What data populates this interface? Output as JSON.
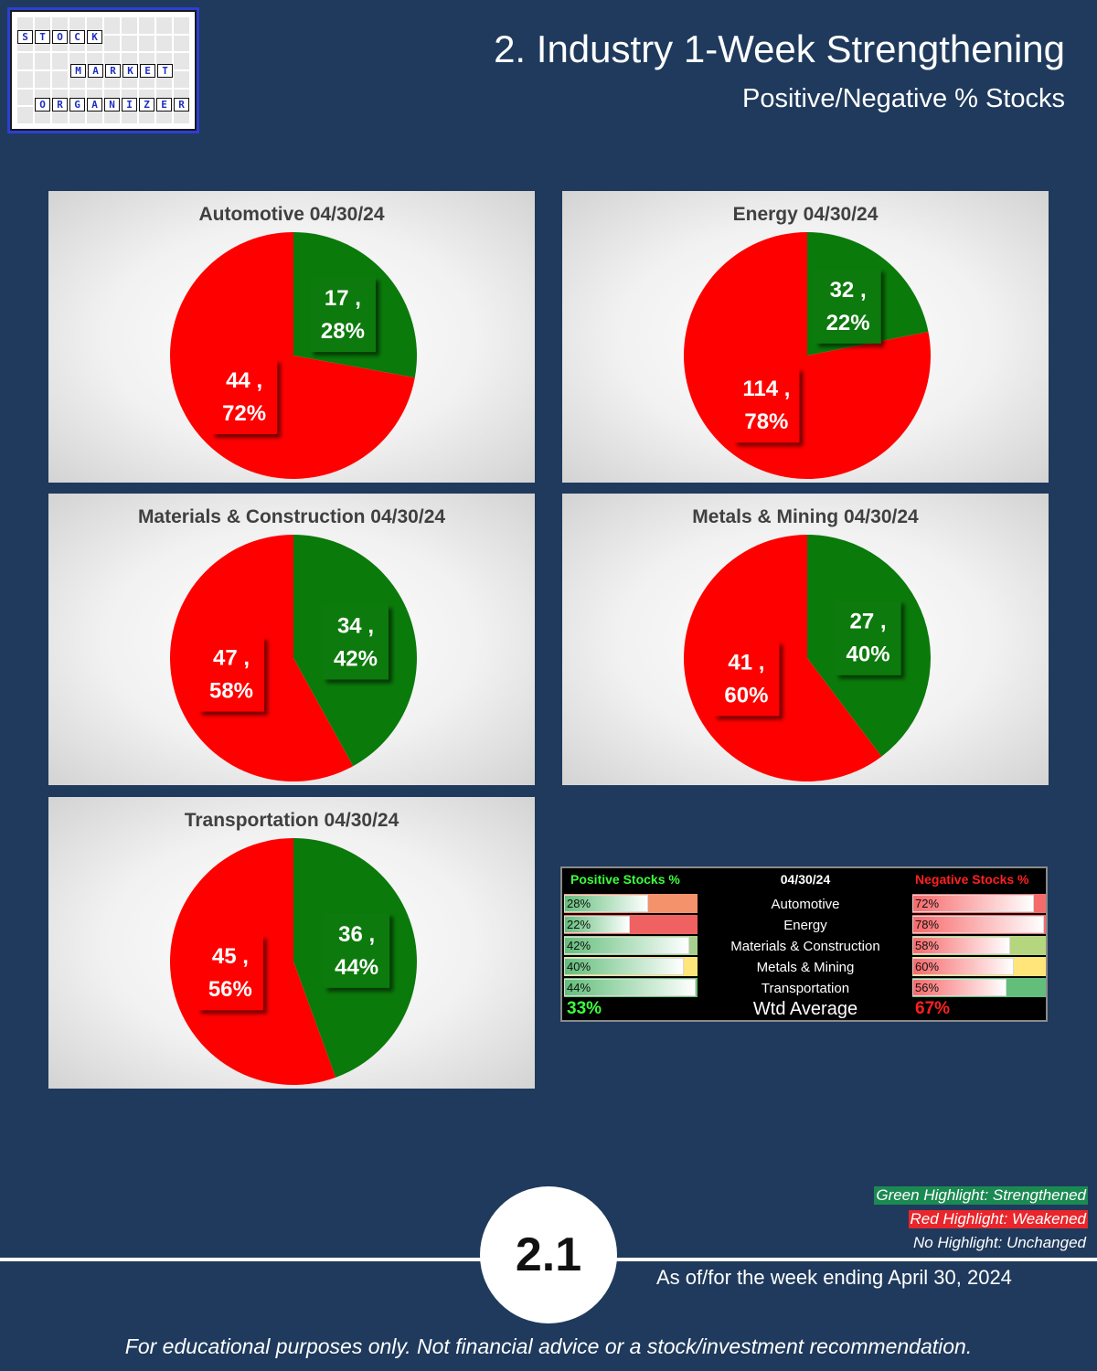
{
  "header": {
    "title": "2. Industry 1-Week Strengthening",
    "subtitle": "Positive/Negative % Stocks"
  },
  "logo": {
    "words": [
      [
        "S",
        "T",
        "O",
        "C",
        "K"
      ],
      [
        "M",
        "A",
        "R",
        "K",
        "E",
        "T"
      ],
      [
        "O",
        "R",
        "G",
        "A",
        "N",
        "I",
        "Z",
        "E",
        "R"
      ]
    ]
  },
  "colors": {
    "positive": "#0a7a0a",
    "negative": "#ff0000",
    "background": "#1f3a5c"
  },
  "chart_data": [
    {
      "type": "pie",
      "title": "Automotive 04/30/24",
      "labels": [
        "Positive",
        "Negative"
      ],
      "values": [
        17,
        44
      ],
      "percent_labels": [
        "17 ,",
        "28%",
        "44 ,",
        "72%"
      ]
    },
    {
      "type": "pie",
      "title": "Energy 04/30/24",
      "labels": [
        "Positive",
        "Negative"
      ],
      "values": [
        32,
        114
      ],
      "percent_labels": [
        "32 ,",
        "22%",
        "114 ,",
        "78%"
      ]
    },
    {
      "type": "pie",
      "title": "Materials & Construction 04/30/24",
      "labels": [
        "Positive",
        "Negative"
      ],
      "values": [
        34,
        47
      ],
      "percent_labels": [
        "34 ,",
        "42%",
        "47 ,",
        "58%"
      ]
    },
    {
      "type": "pie",
      "title": "Metals & Mining 04/30/24",
      "labels": [
        "Positive",
        "Negative"
      ],
      "values": [
        27,
        41
      ],
      "percent_labels": [
        "27 ,",
        "40%",
        "41 ,",
        "60%"
      ]
    },
    {
      "type": "pie",
      "title": "Transportation 04/30/24",
      "labels": [
        "Positive",
        "Negative"
      ],
      "values": [
        36,
        45
      ],
      "percent_labels": [
        "36 ,",
        "44%",
        "45 ,",
        "56%"
      ]
    },
    {
      "type": "table",
      "headers": {
        "positive": "Positive Stocks %",
        "date": "04/30/24",
        "negative": "Negative Stocks %"
      },
      "rows": [
        {
          "industry": "Automotive",
          "positive_pct": "28%",
          "positive": 28,
          "negative_pct": "72%",
          "negative": 72,
          "pos_highlight": "#f4926c",
          "neg_highlight": "#f36b6b"
        },
        {
          "industry": "Energy",
          "positive_pct": "22%",
          "positive": 22,
          "negative_pct": "78%",
          "negative": 78,
          "pos_highlight": "#f06262",
          "neg_highlight": "#f8696b"
        },
        {
          "industry": "Materials & Construction",
          "positive_pct": "42%",
          "positive": 42,
          "negative_pct": "58%",
          "negative": 58,
          "pos_highlight": "#a8d08d",
          "neg_highlight": "#b5d67e"
        },
        {
          "industry": "Metals & Mining",
          "positive_pct": "40%",
          "positive": 40,
          "negative_pct": "60%",
          "negative": 60,
          "pos_highlight": "#ffe57a",
          "neg_highlight": "#ffe57a"
        },
        {
          "industry": "Transportation",
          "positive_pct": "44%",
          "positive": 44,
          "negative_pct": "56%",
          "negative": 56,
          "pos_highlight": "#6bbf7a",
          "neg_highlight": "#63be7b"
        }
      ],
      "footer": {
        "positive": "33%",
        "label": "Wtd Average",
        "negative": "67%"
      }
    }
  ],
  "legend": {
    "green": "Green Highlight: Strengthened",
    "red": "Red Highlight: Weakened",
    "none": "No Highlight: Unchanged"
  },
  "page_number": "2.1",
  "as_of": "As of/for the week ending April 30, 2024",
  "disclaimer": "For educational purposes only. Not financial advice or a stock/investment recommendation."
}
